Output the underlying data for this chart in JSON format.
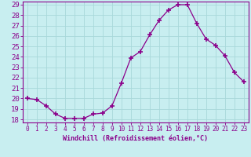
{
  "x": [
    0,
    1,
    2,
    3,
    4,
    5,
    6,
    7,
    8,
    9,
    10,
    11,
    12,
    13,
    14,
    15,
    16,
    17,
    18,
    19,
    20,
    21,
    22,
    23
  ],
  "y": [
    20.0,
    19.9,
    19.3,
    18.5,
    18.1,
    18.1,
    18.1,
    18.5,
    18.6,
    19.3,
    21.5,
    23.9,
    24.5,
    26.1,
    27.5,
    28.5,
    29.0,
    29.0,
    27.2,
    25.7,
    25.1,
    24.1,
    22.5,
    21.6
  ],
  "line_color": "#8b008b",
  "marker": "+",
  "marker_size": 4,
  "marker_lw": 1.2,
  "bg_color": "#c8eef0",
  "grid_color": "#a8d8da",
  "axis_color": "#8b008b",
  "tick_color": "#8b008b",
  "xlabel": "Windchill (Refroidissement éolien,°C)",
  "ylim": [
    18,
    29
  ],
  "xlim": [
    -0.5,
    23.5
  ],
  "yticks": [
    18,
    19,
    20,
    21,
    22,
    23,
    24,
    25,
    26,
    27,
    28,
    29
  ],
  "xticks": [
    0,
    1,
    2,
    3,
    4,
    5,
    6,
    7,
    8,
    9,
    10,
    11,
    12,
    13,
    14,
    15,
    16,
    17,
    18,
    19,
    20,
    21,
    22,
    23
  ],
  "xlabel_fontsize": 6.0,
  "ytick_fontsize": 6.5,
  "xtick_fontsize": 5.5
}
